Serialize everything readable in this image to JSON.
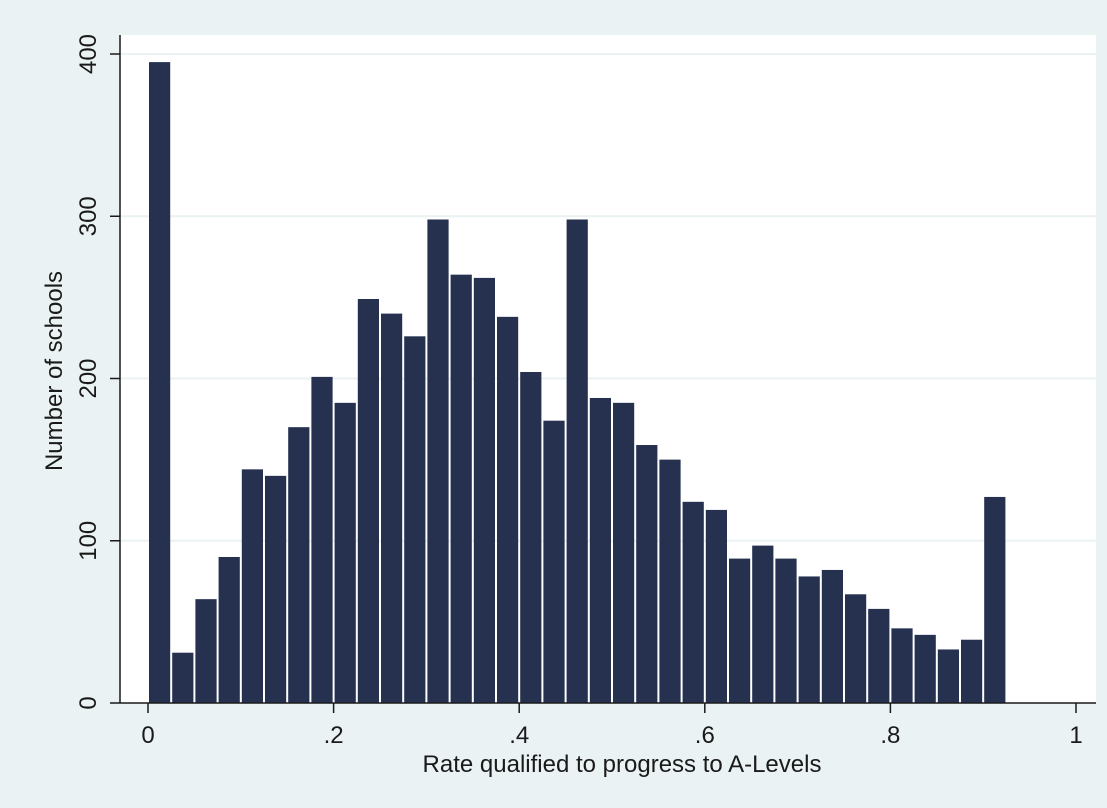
{
  "chart_data": {
    "type": "bar",
    "title": "",
    "xlabel": "Rate qualified to progress to A-Levels",
    "ylabel": "Number of schools",
    "xlim": [
      0,
      1
    ],
    "ylim": [
      0,
      400
    ],
    "bin_width": 0.025,
    "x_ticks": [
      0,
      0.2,
      0.4,
      0.6,
      0.8,
      1
    ],
    "x_tick_labels": [
      "0",
      ".2",
      ".4",
      ".6",
      ".8",
      "1"
    ],
    "y_ticks": [
      0,
      100,
      200,
      300,
      400
    ],
    "y_tick_labels": [
      "0",
      "100",
      "200",
      "300",
      "400"
    ],
    "grid": true,
    "x": [
      0,
      0.025,
      0.05,
      0.075,
      0.1,
      0.125,
      0.15,
      0.175,
      0.2,
      0.225,
      0.25,
      0.275,
      0.3,
      0.325,
      0.35,
      0.375,
      0.4,
      0.425,
      0.45,
      0.475,
      0.5,
      0.525,
      0.55,
      0.575,
      0.6,
      0.625,
      0.65,
      0.675,
      0.7,
      0.725,
      0.75,
      0.775,
      0.8,
      0.825,
      0.85,
      0.875,
      0.9,
      0.925,
      0.95,
      0.975
    ],
    "values": [
      395,
      31,
      64,
      90,
      144,
      140,
      170,
      201,
      185,
      249,
      240,
      226,
      298,
      264,
      262,
      238,
      204,
      174,
      298,
      188,
      185,
      159,
      150,
      124,
      119,
      89,
      97,
      89,
      78,
      82,
      67,
      58,
      46,
      42,
      33,
      39,
      127,
      0,
      0,
      0
    ],
    "bar_color": "#26304f",
    "background_color": "#eaf2f3",
    "plot_background_color": "#ffffff",
    "grid_color": "#eaf2f3"
  }
}
